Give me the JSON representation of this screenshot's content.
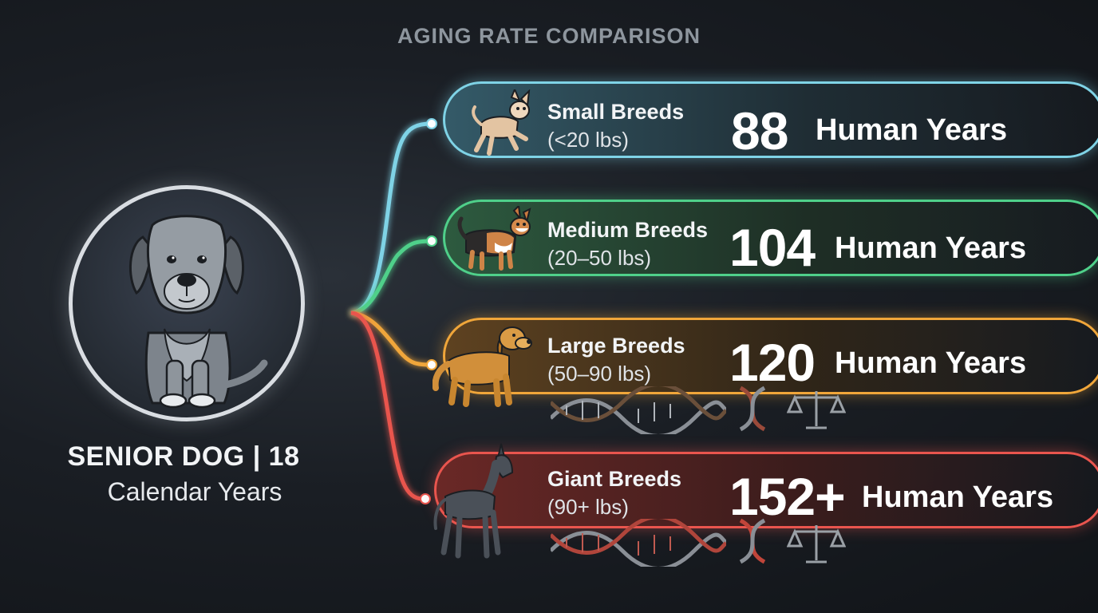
{
  "title": "AGING RATE COMPARISON",
  "hero": {
    "label_line1": "SENIOR DOG | 18",
    "label_line2": "Calendar Years",
    "icon": "senior-dog-icon"
  },
  "breeds": [
    {
      "name": "Small Breeds",
      "weight": "(<20 lbs)",
      "value": "88",
      "unit": "Human Years",
      "color": "#7fd3e6",
      "icon": "chihuahua-icon"
    },
    {
      "name": "Medium Breeds",
      "weight": "(20–50 lbs)",
      "value": "104",
      "unit": "Human Years",
      "color": "#4fd08a",
      "icon": "corgi-icon"
    },
    {
      "name": "Large Breeds",
      "weight": "(50–90 lbs)",
      "value": "120",
      "unit": "Human Years",
      "color": "#f0a63a",
      "icon": "golden-retriever-icon"
    },
    {
      "name": "Giant Breeds",
      "weight": "(90+ lbs)",
      "value": "152+",
      "unit": "Human Years",
      "color": "#e9554e",
      "icon": "great-dane-icon"
    }
  ],
  "decor_icons": [
    "dna-icon",
    "scale-icon"
  ]
}
